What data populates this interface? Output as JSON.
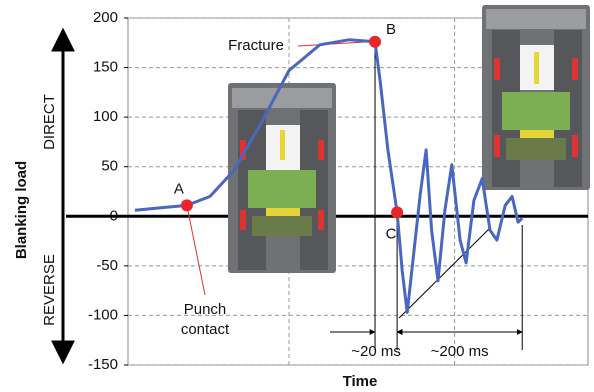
{
  "chart_data": {
    "type": "line",
    "y_label": "Blanking load",
    "x_label": "Time",
    "direction_labels": [
      "DIRECT",
      "REVERSE"
    ],
    "ylim": [
      -150,
      200
    ],
    "yticks": [
      -150,
      -100,
      -50,
      0,
      50,
      100,
      150,
      200
    ],
    "xlim": [
      0,
      100
    ],
    "x_gridlines": [
      35,
      71
    ],
    "grid": true,
    "series": [
      {
        "color": "#4a67c0",
        "x": [
          1.5,
          8,
          12.8,
          17.8,
          23,
          28.7,
          35,
          41.7,
          48,
          53.7,
          54.8,
          56.5,
          58.5,
          59.6,
          60.7,
          62.2,
          63.5,
          64.8,
          66,
          67.4,
          68.9,
          70.4,
          72.2,
          73.5,
          75.2,
          77,
          78.7,
          80.2,
          82,
          83.5,
          84.8,
          85.7
        ],
        "values": [
          6,
          9,
          11,
          20,
          46,
          92,
          147,
          173,
          178,
          176,
          137,
          67,
          4,
          -55,
          -97,
          -34,
          21,
          67,
          -14,
          -65,
          6,
          52,
          -24,
          -47,
          16,
          38,
          -14,
          -24,
          11,
          20,
          -6,
          -2
        ]
      }
    ],
    "points": [
      {
        "label": "A",
        "x": 12.8,
        "y": 11,
        "color": "#e8262a"
      },
      {
        "label": "B",
        "x": 53.7,
        "y": 176,
        "color": "#e8262a"
      },
      {
        "label": "C",
        "x": 58.5,
        "y": 4,
        "color": "#e8262a"
      }
    ],
    "annotations": {
      "fracture": "Fracture",
      "punch_contact": [
        "Punch",
        "contact"
      ],
      "interval_1": "~20 ms",
      "interval_2": "~200 ms"
    }
  }
}
